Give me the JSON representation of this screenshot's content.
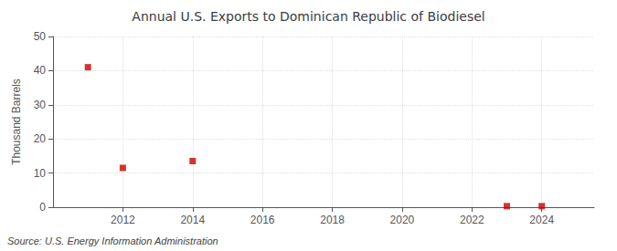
{
  "chart_data": {
    "type": "scatter",
    "title": "Annual U.S. Exports to Dominican Republic of Biodiesel",
    "ylabel": "Thousand Barrels",
    "annotation": "Source: U.S. Energy Information Administration",
    "x": [
      2011,
      2012,
      2014,
      2023,
      2024
    ],
    "values": [
      41.0,
      11.5,
      13.5,
      0.3,
      0.3
    ],
    "color": "#cc0000",
    "marker": "square",
    "xlim": [
      2010.0,
      2025.5
    ],
    "xticks": [
      2012,
      2014,
      2016,
      2018,
      2020,
      2022,
      2024
    ],
    "ylim": [
      0,
      50
    ],
    "yticks": [
      0,
      10,
      20,
      30,
      40,
      50
    ],
    "grid": true
  }
}
